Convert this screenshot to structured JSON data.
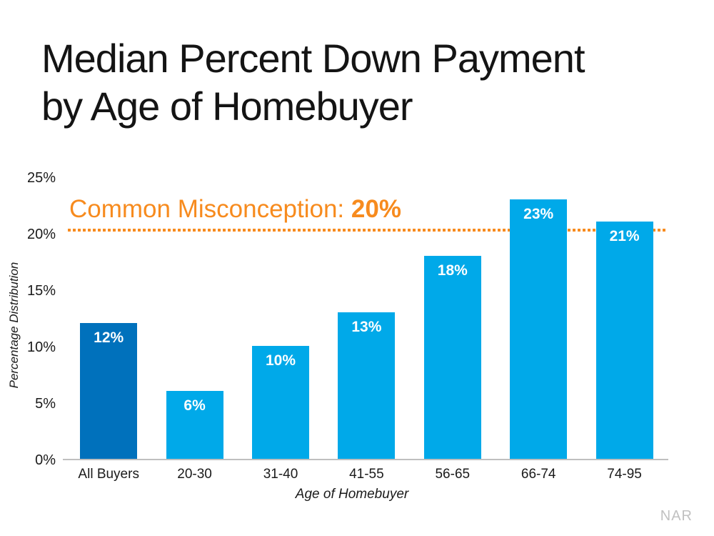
{
  "title": {
    "line1": "Median Percent Down Payment",
    "line2": "by Age of Homebuyer"
  },
  "annotation": {
    "prefix": "Common Misconception: ",
    "value": "20%"
  },
  "source": "NAR",
  "colors": {
    "bar_highlight": "#0071BC",
    "bar_default": "#00A9E9",
    "reference_orange": "#F78B1E",
    "axis_gray": "#BFBFBF",
    "value_label_white": "#FFFFFF"
  },
  "chart_data": {
    "type": "bar",
    "categories": [
      "All Buyers",
      "20-30",
      "31-40",
      "41-55",
      "56-65",
      "66-74",
      "74-95"
    ],
    "values": [
      12,
      6,
      10,
      13,
      18,
      23,
      21
    ],
    "value_labels": [
      "12%",
      "6%",
      "10%",
      "13%",
      "18%",
      "23%",
      "21%"
    ],
    "highlight_index": 0,
    "xlabel": "Age of Homebuyer",
    "ylabel": "Percentage Distribution",
    "y_ticks": [
      0,
      5,
      10,
      15,
      20,
      25
    ],
    "y_tick_labels": [
      "0%",
      "5%",
      "10%",
      "15%",
      "20%",
      "25%"
    ],
    "ylim": [
      0,
      25
    ],
    "grid": false,
    "legend": false,
    "reference_line": {
      "value": 20,
      "style": "dotted",
      "label": "Common Misconception: 20%"
    }
  }
}
